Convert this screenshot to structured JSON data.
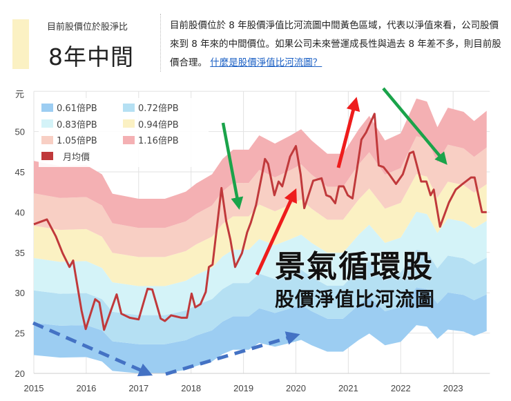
{
  "header": {
    "position_label": "目前股價位於股淨比",
    "position_value": "8年中間",
    "indicator_color": "#fbf1c3",
    "description": "目前股價位於 8 年股價淨值比河流圖中間黃色區域，代表以淨值來看，公司股價來到 8 年來的中間價位。如果公司未來營運成長性與過去 8 年差不多，則目前股價合理。",
    "help_link": "什麼是股價淨值比河流圖？"
  },
  "annotations": {
    "title": "景氣循環股",
    "subtitle": "股價淨值比河流圖"
  },
  "chart_data": {
    "type": "area",
    "ylabel": "元",
    "ylim": [
      20,
      55
    ],
    "xlim": [
      2015,
      2023.7
    ],
    "y_ticks": [
      "20",
      "25",
      "30",
      "35",
      "40",
      "45",
      "50"
    ],
    "x_ticks": [
      "2015",
      "2016",
      "2017",
      "2018",
      "2019",
      "2020",
      "2021",
      "2022",
      "2023"
    ],
    "grid": true,
    "legend_position": "top-left",
    "bands": [
      {
        "name": "0.61倍PB",
        "multiple": 0.61,
        "color": "#9ccdf2"
      },
      {
        "name": "0.72倍PB",
        "multiple": 0.72,
        "color": "#b5e0f3"
      },
      {
        "name": "0.83倍PB",
        "multiple": 0.83,
        "color": "#d4f3f8"
      },
      {
        "name": "0.94倍PB",
        "multiple": 0.94,
        "color": "#fbf1c3"
      },
      {
        "name": "1.05倍PB",
        "multiple": 1.05,
        "color": "#f8cfc4"
      },
      {
        "name": "1.16倍PB",
        "multiple": 1.16,
        "color": "#f4b0b3"
      }
    ],
    "book_value_per_share": {
      "x": [
        2015.0,
        2015.5,
        2016.0,
        2016.3,
        2016.5,
        2017.0,
        2017.5,
        2017.9,
        2018.1,
        2018.4,
        2018.6,
        2018.8,
        2019.1,
        2019.3,
        2019.6,
        2019.9,
        2020.1,
        2020.3,
        2020.6,
        2020.9,
        2021.2,
        2021.4,
        2021.7,
        2022.0,
        2022.3,
        2022.5,
        2022.7,
        2022.9,
        2023.2,
        2023.4,
        2023.64
      ],
      "values": [
        36.5,
        36.0,
        36.1,
        35.2,
        33.3,
        32.8,
        32.8,
        33.5,
        34.3,
        35.2,
        36.7,
        37.6,
        37.6,
        39.0,
        38.2,
        39.0,
        39.6,
        38.5,
        37.2,
        37.2,
        39.6,
        40.9,
        38.5,
        39.2,
        42.6,
        42.3,
        39.8,
        41.7,
        41.3,
        40.4,
        41.4
      ]
    },
    "series": [
      {
        "name": "月均價",
        "color": "#c0393b",
        "x": [
          2015.0,
          2015.25,
          2015.42,
          2015.55,
          2015.68,
          2015.75,
          2015.91,
          2015.99,
          2016.17,
          2016.25,
          2016.34,
          2016.58,
          2016.67,
          2016.83,
          2017.0,
          2017.17,
          2017.26,
          2017.42,
          2017.5,
          2017.62,
          2017.82,
          2017.92,
          2018.01,
          2018.08,
          2018.18,
          2018.28,
          2018.34,
          2018.41,
          2018.58,
          2018.67,
          2018.75,
          2018.84,
          2018.97,
          2019.07,
          2019.14,
          2019.24,
          2019.37,
          2019.41,
          2019.47,
          2019.59,
          2019.67,
          2019.74,
          2019.89,
          2020.0,
          2020.09,
          2020.16,
          2020.33,
          2020.49,
          2020.58,
          2020.66,
          2020.75,
          2020.82,
          2020.91,
          2020.99,
          2021.08,
          2021.17,
          2021.25,
          2021.34,
          2021.5,
          2021.58,
          2021.67,
          2021.78,
          2021.91,
          2022.04,
          2022.17,
          2022.24,
          2022.39,
          2022.49,
          2022.57,
          2022.63,
          2022.75,
          2022.92,
          2023.05,
          2023.18,
          2023.34,
          2023.41,
          2023.55,
          2023.64
        ],
        "values": [
          38.5,
          39.1,
          37.0,
          34.9,
          33.2,
          34.0,
          27.8,
          25.5,
          29.2,
          28.8,
          25.4,
          29.8,
          27.4,
          26.9,
          26.7,
          30.5,
          30.4,
          26.8,
          26.5,
          27.2,
          26.9,
          26.9,
          29.9,
          28.2,
          28.6,
          30.1,
          33.2,
          33.5,
          43.0,
          38.9,
          36.6,
          33.2,
          34.9,
          37.5,
          38.7,
          40.9,
          45.2,
          46.6,
          46.0,
          42.1,
          43.8,
          43.2,
          46.9,
          48.2,
          44.7,
          40.5,
          43.9,
          44.2,
          42.1,
          41.9,
          41.1,
          43.2,
          43.2,
          42.1,
          41.7,
          45.5,
          49.0,
          49.9,
          52.2,
          45.8,
          45.6,
          44.7,
          43.5,
          44.7,
          47.3,
          47.5,
          43.8,
          43.8,
          42.1,
          42.8,
          38.2,
          41.2,
          42.8,
          43.5,
          44.3,
          44.3,
          40.0,
          40.0
        ]
      }
    ]
  }
}
